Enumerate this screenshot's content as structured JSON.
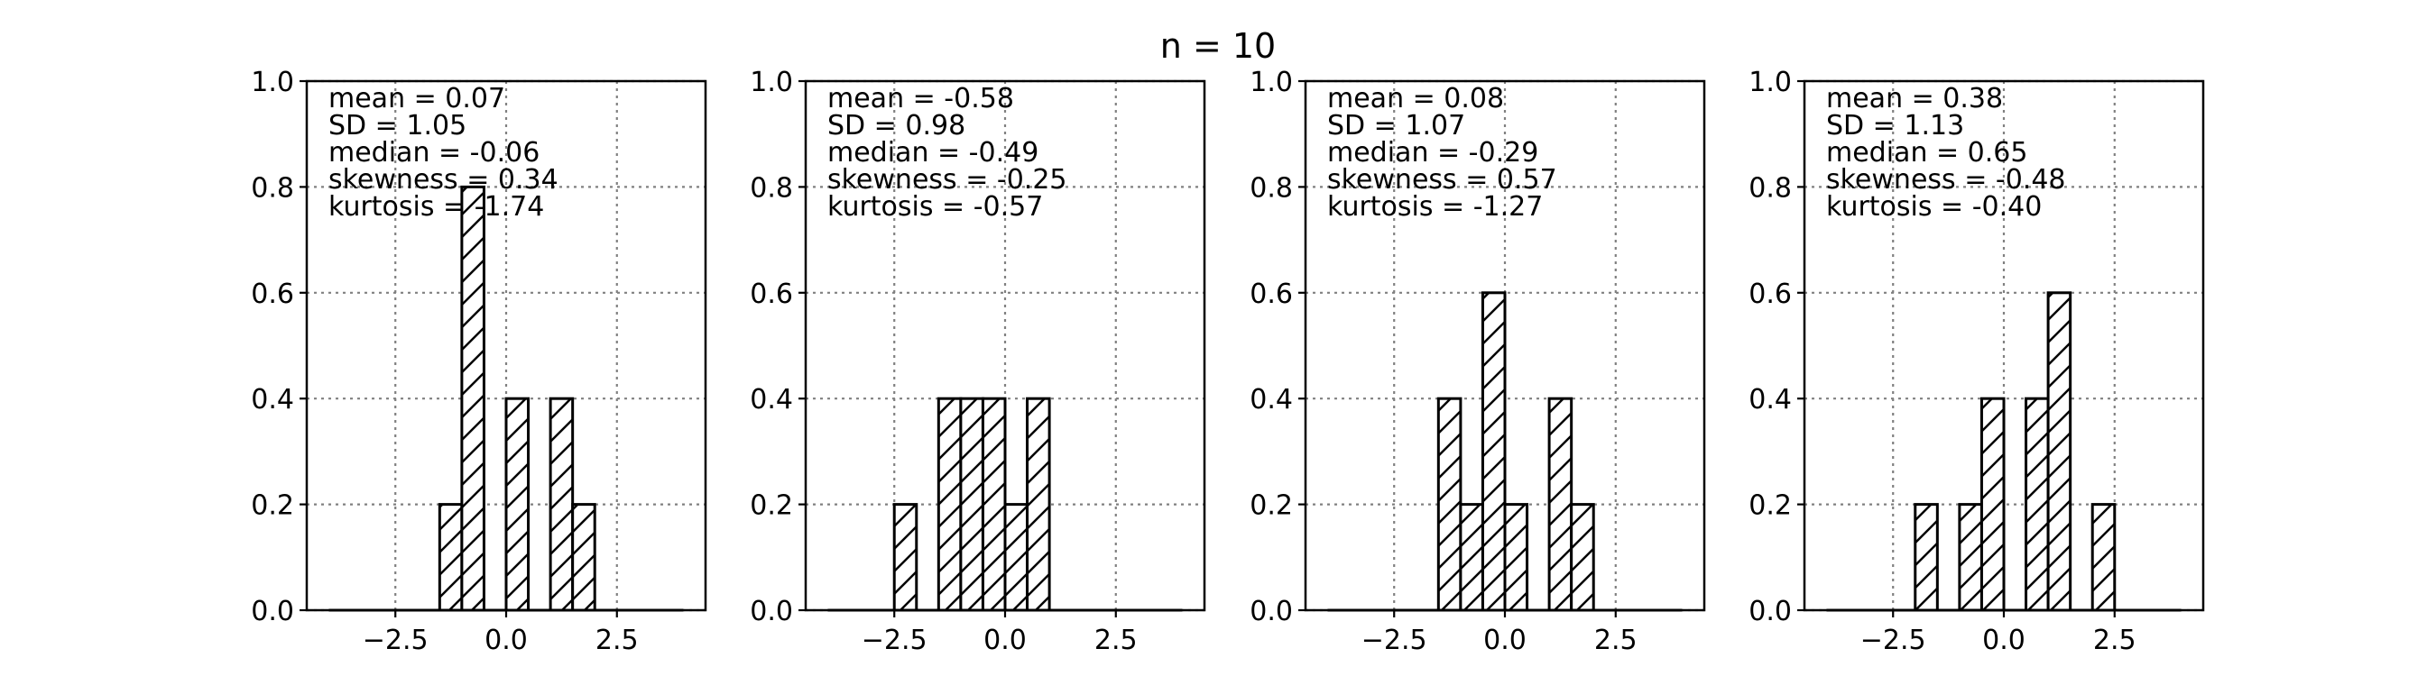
{
  "chart_data": {
    "type": "histogram-grid",
    "title": "n = 10",
    "bar_style": "hatched",
    "grid": true,
    "panels": [
      {
        "stats": [
          "mean = 0.07",
          "SD = 1.05",
          "median = -0.06",
          "skewness = 0.34",
          "kurtosis = -1.74"
        ],
        "xlim": [
          -4.5,
          4.5
        ],
        "ylim": [
          0.0,
          1.0
        ],
        "xticks": [
          -2.5,
          0.0,
          2.5
        ],
        "xtick_labels": [
          "−2.5",
          "0.0",
          "2.5"
        ],
        "yticks": [
          0.0,
          0.2,
          0.4,
          0.6,
          0.8,
          1.0
        ],
        "ytick_labels": [
          "0.0",
          "0.2",
          "0.4",
          "0.6",
          "0.8",
          "1.0"
        ],
        "bins": [
          {
            "x0": -1.5,
            "x1": -1.0,
            "y": 0.2
          },
          {
            "x0": -1.0,
            "x1": -0.5,
            "y": 0.8
          },
          {
            "x0": 0.0,
            "x1": 0.5,
            "y": 0.4
          },
          {
            "x0": 1.0,
            "x1": 1.5,
            "y": 0.4
          },
          {
            "x0": 1.5,
            "x1": 2.0,
            "y": 0.2
          }
        ],
        "range": [
          -4.0,
          4.0
        ]
      },
      {
        "stats": [
          "mean = -0.58",
          "SD = 0.98",
          "median = -0.49",
          "skewness = -0.25",
          "kurtosis = -0.57"
        ],
        "xlim": [
          -4.5,
          4.5
        ],
        "ylim": [
          0.0,
          1.0
        ],
        "xticks": [
          -2.5,
          0.0,
          2.5
        ],
        "xtick_labels": [
          "−2.5",
          "0.0",
          "2.5"
        ],
        "yticks": [
          0.0,
          0.2,
          0.4,
          0.6,
          0.8,
          1.0
        ],
        "ytick_labels": [
          "0.0",
          "0.2",
          "0.4",
          "0.6",
          "0.8",
          "1.0"
        ],
        "bins": [
          {
            "x0": -2.5,
            "x1": -2.0,
            "y": 0.2
          },
          {
            "x0": -1.5,
            "x1": -1.0,
            "y": 0.4
          },
          {
            "x0": -1.0,
            "x1": -0.5,
            "y": 0.4
          },
          {
            "x0": -0.5,
            "x1": 0.0,
            "y": 0.4
          },
          {
            "x0": 0.0,
            "x1": 0.5,
            "y": 0.2
          },
          {
            "x0": 0.5,
            "x1": 1.0,
            "y": 0.4
          }
        ],
        "range": [
          -4.0,
          4.0
        ]
      },
      {
        "stats": [
          "mean = 0.08",
          "SD = 1.07",
          "median = -0.29",
          "skewness = 0.57",
          "kurtosis = -1.27"
        ],
        "xlim": [
          -4.5,
          4.5
        ],
        "ylim": [
          0.0,
          1.0
        ],
        "xticks": [
          -2.5,
          0.0,
          2.5
        ],
        "xtick_labels": [
          "−2.5",
          "0.0",
          "2.5"
        ],
        "yticks": [
          0.0,
          0.2,
          0.4,
          0.6,
          0.8,
          1.0
        ],
        "ytick_labels": [
          "0.0",
          "0.2",
          "0.4",
          "0.6",
          "0.8",
          "1.0"
        ],
        "bins": [
          {
            "x0": -1.5,
            "x1": -1.0,
            "y": 0.4
          },
          {
            "x0": -1.0,
            "x1": -0.5,
            "y": 0.2
          },
          {
            "x0": -0.5,
            "x1": 0.0,
            "y": 0.6
          },
          {
            "x0": 0.0,
            "x1": 0.5,
            "y": 0.2
          },
          {
            "x0": 1.0,
            "x1": 1.5,
            "y": 0.4
          },
          {
            "x0": 1.5,
            "x1": 2.0,
            "y": 0.2
          }
        ],
        "range": [
          -4.0,
          4.0
        ]
      },
      {
        "stats": [
          "mean = 0.38",
          "SD = 1.13",
          "median = 0.65",
          "skewness = -0.48",
          "kurtosis = -0.40"
        ],
        "xlim": [
          -4.5,
          4.5
        ],
        "ylim": [
          0.0,
          1.0
        ],
        "xticks": [
          -2.5,
          0.0,
          2.5
        ],
        "xtick_labels": [
          "−2.5",
          "0.0",
          "2.5"
        ],
        "yticks": [
          0.0,
          0.2,
          0.4,
          0.6,
          0.8,
          1.0
        ],
        "ytick_labels": [
          "0.0",
          "0.2",
          "0.4",
          "0.6",
          "0.8",
          "1.0"
        ],
        "bins": [
          {
            "x0": -2.0,
            "x1": -1.5,
            "y": 0.2
          },
          {
            "x0": -1.0,
            "x1": -0.5,
            "y": 0.2
          },
          {
            "x0": -0.5,
            "x1": 0.0,
            "y": 0.4
          },
          {
            "x0": 0.5,
            "x1": 1.0,
            "y": 0.4
          },
          {
            "x0": 1.0,
            "x1": 1.5,
            "y": 0.6
          },
          {
            "x0": 2.0,
            "x1": 2.5,
            "y": 0.2
          }
        ],
        "range": [
          -4.0,
          4.0
        ]
      }
    ]
  }
}
